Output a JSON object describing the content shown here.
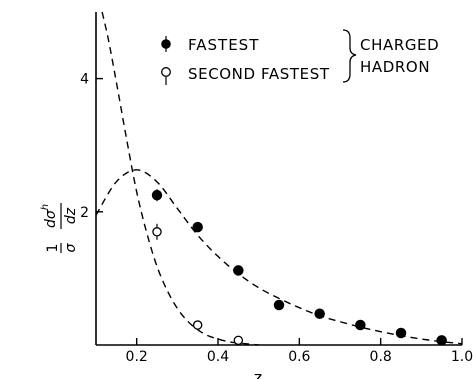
{
  "chart_data": {
    "type": "scatter",
    "title": "",
    "xlabel": "z",
    "ylabel": "1/σ dσ^h/dz",
    "xlim": [
      0.1,
      1.0
    ],
    "ylim": [
      0,
      5
    ],
    "xticks": [
      0.2,
      0.4,
      0.6,
      0.8,
      1.0
    ],
    "xtick_labels": [
      "0.2",
      "0.4",
      "0.6",
      "0.8",
      "1.0"
    ],
    "yticks": [
      2,
      4
    ],
    "ytick_labels": [
      "2",
      "4"
    ],
    "grid": false,
    "legend": {
      "placement": "top",
      "entries": [
        "FASTEST",
        "SECOND FASTEST"
      ],
      "group_label": [
        "CHARGED",
        "HADRON"
      ]
    },
    "series": [
      {
        "name": "FASTEST",
        "marker": "filled-circle",
        "x": [
          0.25,
          0.35,
          0.45,
          0.55,
          0.65,
          0.75,
          0.85,
          0.95
        ],
        "y": [
          2.25,
          1.77,
          1.12,
          0.6,
          0.47,
          0.3,
          0.18,
          0.07
        ],
        "yerr": [
          0.09,
          0.07,
          0.07,
          0.04,
          0.04,
          0.03,
          0.02,
          0.02
        ]
      },
      {
        "name": "SECOND FASTEST",
        "marker": "open-circle",
        "x": [
          0.25,
          0.35,
          0.45
        ],
        "y": [
          1.7,
          0.3,
          0.07
        ],
        "yerr": [
          0.12,
          0.04,
          0.03
        ]
      }
    ],
    "curves": [
      {
        "style": "dashed",
        "x": [
          0.1,
          0.15,
          0.2,
          0.25,
          0.3,
          0.35,
          0.4,
          0.45,
          0.5,
          0.55,
          0.6,
          0.65,
          0.7,
          0.75,
          0.8,
          0.85,
          0.9,
          0.95,
          1.0
        ],
        "y": [
          1.95,
          2.45,
          2.63,
          2.45,
          2.05,
          1.65,
          1.33,
          1.07,
          0.86,
          0.7,
          0.56,
          0.44,
          0.35,
          0.27,
          0.2,
          0.14,
          0.09,
          0.05,
          0.02
        ]
      },
      {
        "style": "dashed",
        "x": [
          0.115,
          0.13,
          0.15,
          0.175,
          0.2,
          0.225,
          0.25,
          0.275,
          0.3,
          0.325,
          0.35,
          0.375,
          0.4,
          0.425,
          0.45,
          0.475,
          0.5
        ],
        "y": [
          5.0,
          4.6,
          3.95,
          3.1,
          2.3,
          1.68,
          1.18,
          0.82,
          0.55,
          0.36,
          0.23,
          0.14,
          0.09,
          0.05,
          0.03,
          0.015,
          0.0
        ]
      }
    ]
  }
}
